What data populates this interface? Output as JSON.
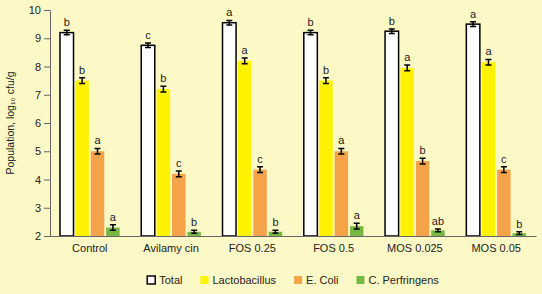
{
  "chart_data": {
    "type": "bar",
    "y_label": "Population, log₁₀ cfu/g",
    "categories": [
      "Control",
      "Avilamy cin",
      "FOS 0.25",
      "FOS 0.5",
      "MOS 0.025",
      "MOS 0.05"
    ],
    "series": [
      {
        "name": "Total",
        "color": "#ffffff",
        "values": [
          9.2,
          8.75,
          9.55,
          9.2,
          9.25,
          9.5
        ],
        "errors": [
          0.08,
          0.08,
          0.08,
          0.08,
          0.08,
          0.08
        ],
        "letters": [
          "b",
          "c",
          "a",
          "b",
          "b",
          "a"
        ]
      },
      {
        "name": "Lactobacillus",
        "color": "#fff200",
        "values": [
          7.5,
          7.2,
          8.2,
          7.5,
          7.95,
          8.15
        ],
        "errors": [
          0.1,
          0.1,
          0.1,
          0.1,
          0.1,
          0.1
        ],
        "letters": [
          "b",
          "b",
          "a",
          "b",
          "a",
          "a"
        ]
      },
      {
        "name": "E. Coli",
        "color": "#f4a349",
        "values": [
          5.0,
          4.2,
          4.35,
          5.0,
          4.65,
          4.35
        ],
        "errors": [
          0.1,
          0.1,
          0.1,
          0.1,
          0.1,
          0.1
        ],
        "letters": [
          "a",
          "c",
          "c",
          "a",
          "b",
          "c"
        ]
      },
      {
        "name": "C. Perfringens",
        "color": "#76b843",
        "values": [
          2.3,
          2.15,
          2.15,
          2.35,
          2.2,
          2.1
        ],
        "errors": [
          0.1,
          0.05,
          0.05,
          0.1,
          0.05,
          0.05
        ],
        "letters": [
          "a",
          "b",
          "b",
          "a",
          "ab",
          "b"
        ]
      }
    ],
    "ylim": [
      2,
      10
    ],
    "yticks": [
      2,
      3,
      4,
      5,
      6,
      7,
      8,
      9,
      10
    ],
    "legend": "bottom"
  }
}
